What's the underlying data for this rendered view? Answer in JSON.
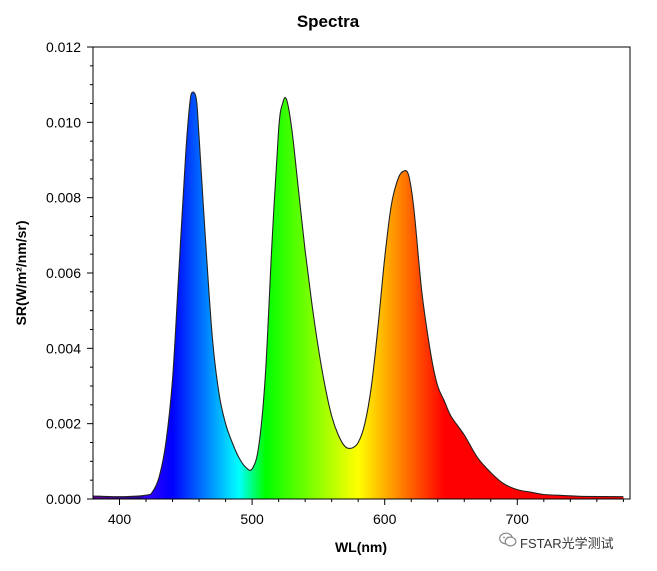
{
  "chart_data": {
    "type": "area",
    "title": "Spectra",
    "xlabel": "WL(nm)",
    "ylabel": "SR(W/m²/nm/sr)",
    "xlim": [
      380,
      785
    ],
    "ylim": [
      0,
      0.012
    ],
    "x_ticks": [
      400,
      500,
      600,
      700
    ],
    "y_ticks": [
      "0.000",
      "0.002",
      "0.004",
      "0.006",
      "0.008",
      "0.010",
      "0.012"
    ],
    "grid": false,
    "legend": "none",
    "fill": "visible-spectrum gradient by wavelength",
    "series": [
      {
        "x": [
          380,
          400,
          420,
          425,
          430,
          435,
          440,
          445,
          450,
          453,
          455,
          458,
          460,
          465,
          470,
          475,
          480,
          485,
          490,
          495,
          500,
          505,
          510,
          515,
          520,
          523,
          526,
          530,
          535,
          540,
          545,
          550,
          555,
          560,
          565,
          570,
          575,
          580,
          585,
          590,
          595,
          600,
          605,
          610,
          614,
          618,
          622,
          628,
          635,
          640,
          645,
          650,
          660,
          670,
          680,
          690,
          700,
          710,
          720,
          730,
          750,
          780
        ],
        "y": [
          8e-05,
          6e-05,
          0.0001,
          0.0002,
          0.0006,
          0.0015,
          0.0032,
          0.0062,
          0.0092,
          0.0105,
          0.0108,
          0.0106,
          0.0096,
          0.0068,
          0.0043,
          0.0028,
          0.002,
          0.0015,
          0.0011,
          0.00085,
          0.0008,
          0.0014,
          0.0033,
          0.0068,
          0.0098,
          0.0105,
          0.0106,
          0.0098,
          0.0082,
          0.0066,
          0.0052,
          0.004,
          0.003,
          0.0022,
          0.0017,
          0.0014,
          0.00135,
          0.0015,
          0.002,
          0.003,
          0.0046,
          0.0064,
          0.0078,
          0.0085,
          0.0087,
          0.0086,
          0.0077,
          0.0055,
          0.0038,
          0.003,
          0.0026,
          0.0022,
          0.0017,
          0.0011,
          0.0007,
          0.0004,
          0.00025,
          0.00018,
          0.00012,
          0.0001,
          7e-05,
          6e-05
        ]
      }
    ]
  },
  "watermark": {
    "text": "FSTAR光学测试",
    "icon": "wechat-icon"
  }
}
